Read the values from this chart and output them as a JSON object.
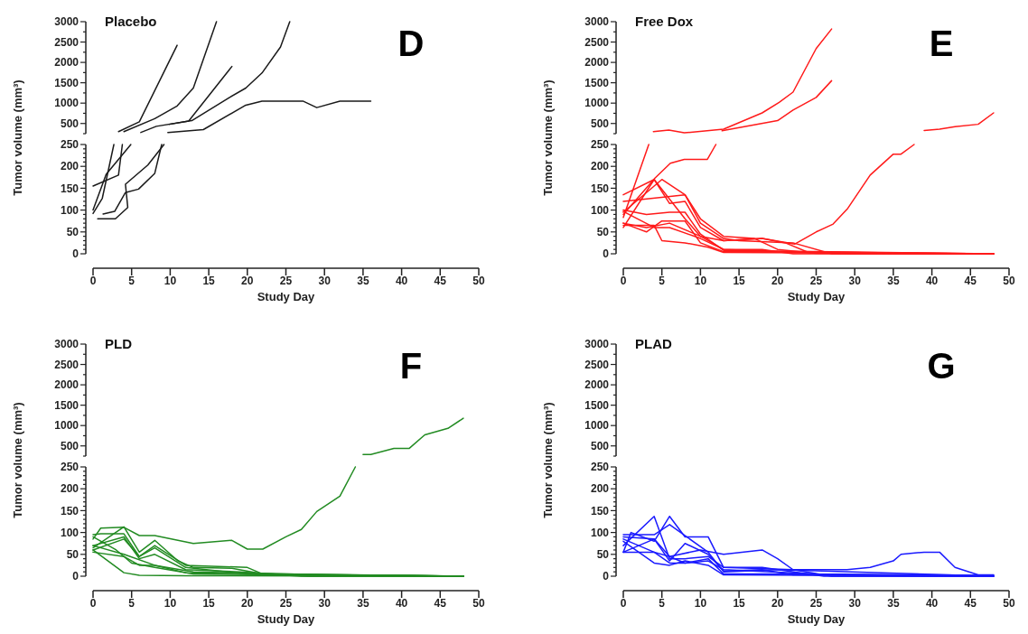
{
  "chart_data": [
    {
      "type": "line",
      "title": "Placebo",
      "annotations": [
        "D"
      ],
      "tick_labels": "y",
      "xlim": [
        0,
        50
      ],
      "ylim": [
        250,
        3000
      ],
      "yticks": [
        {
          "value": 250,
          "label": null
        },
        500,
        {
          "value": 750,
          "label": null
        },
        1000,
        {
          "value": 1250,
          "label": null
        },
        1500,
        {
          "value": 1750,
          "label": null
        },
        2000,
        {
          "value": 2250,
          "label": null
        },
        2500,
        {
          "value": 2750,
          "label": null
        },
        3000
      ],
      "series": [
        {
          "color": "#1a1a1a",
          "x": [
            3.3,
            6,
            10.9
          ],
          "values": [
            300,
            540,
            2420
          ]
        },
        {
          "color": "#1a1a1a",
          "x": [
            4,
            8,
            10.9,
            13,
            16
          ],
          "values": [
            300,
            620,
            930,
            1370,
            3000
          ]
        },
        {
          "color": "#1a1a1a",
          "x": [
            6.2,
            8.2,
            12.8,
            17.7,
            19.8,
            21.9,
            24.3,
            25.5
          ],
          "values": [
            280,
            430,
            570,
            1140,
            1370,
            1740,
            2380,
            3000
          ]
        },
        {
          "color": "#1a1a1a",
          "x": [
            9.7,
            14.3,
            19.8,
            21.9,
            27.2,
            29,
            32,
            36
          ],
          "values": [
            280,
            350,
            950,
            1050,
            1050,
            890,
            1050,
            1050
          ]
        },
        {
          "color": "#1a1a1a",
          "x": [
            9.9,
            12.4,
            18
          ],
          "values": [
            480,
            560,
            1900
          ]
        }
      ]
    },
    {
      "type": "line",
      "xlabel": "Study Day",
      "ylabel": "Tumor volume (mm³)",
      "xlim": [
        0,
        50
      ],
      "ylim": [
        0,
        250
      ],
      "xticks": [
        0,
        5,
        10,
        15,
        20,
        25,
        30,
        35,
        40,
        45,
        50
      ],
      "yticks": [
        0,
        {
          "value": 10,
          "label": null
        },
        {
          "value": 20,
          "label": null
        },
        {
          "value": 30,
          "label": null
        },
        {
          "value": 40,
          "label": null
        },
        50,
        {
          "value": 60,
          "label": null
        },
        {
          "value": 70,
          "label": null
        },
        {
          "value": 80,
          "label": null
        },
        {
          "value": 90,
          "label": null
        },
        100,
        {
          "value": 110,
          "label": null
        },
        {
          "value": 120,
          "label": null
        },
        {
          "value": 130,
          "label": null
        },
        {
          "value": 140,
          "label": null
        },
        150,
        {
          "value": 160,
          "label": null
        },
        {
          "value": 170,
          "label": null
        },
        {
          "value": 180,
          "label": null
        },
        {
          "value": 190,
          "label": null
        },
        200,
        {
          "value": 210,
          "label": null
        },
        {
          "value": 220,
          "label": null
        },
        {
          "value": 230,
          "label": null
        },
        {
          "value": 240,
          "label": null
        },
        250
      ],
      "series": [
        {
          "color": "#1a1a1a",
          "x": [
            0,
            1.2,
            2.7
          ],
          "values": [
            92,
            127,
            250
          ]
        },
        {
          "color": "#1a1a1a",
          "x": [
            0,
            3.3,
            3.8
          ],
          "values": [
            155,
            180,
            250
          ]
        },
        {
          "color": "#1a1a1a",
          "x": [
            0,
            1.7,
            4.9
          ],
          "values": [
            100,
            182,
            250
          ]
        },
        {
          "color": "#1a1a1a",
          "x": [
            0.6,
            2.9,
            4.5,
            4.2,
            7.1,
            9.2
          ],
          "values": [
            80,
            80,
            106,
            159,
            203,
            250
          ]
        },
        {
          "color": "#1a1a1a",
          "x": [
            1.3,
            2.8,
            4.2,
            5.9,
            8,
            8.9
          ],
          "values": [
            91,
            97,
            140,
            148,
            184,
            250
          ]
        }
      ]
    },
    {
      "type": "line",
      "title": "Free Dox",
      "annotations": [
        "E"
      ],
      "tick_labels": "y",
      "xlim": [
        0,
        50
      ],
      "ylim": [
        250,
        3000
      ],
      "yticks": [
        {
          "value": 250,
          "label": null
        },
        500,
        {
          "value": 750,
          "label": null
        },
        1000,
        {
          "value": 1250,
          "label": null
        },
        1500,
        {
          "value": 1750,
          "label": null
        },
        2000,
        {
          "value": 2250,
          "label": null
        },
        2500,
        {
          "value": 2750,
          "label": null
        },
        3000
      ],
      "series": [
        {
          "color": "#ff1a1a",
          "x": [
            3.9,
            5.9,
            7.9,
            13,
            18,
            20.2,
            22,
            25,
            27
          ],
          "values": [
            300,
            340,
            270,
            360,
            760,
            1020,
            1270,
            2340,
            2820
          ]
        },
        {
          "color": "#ff1a1a",
          "x": [
            12.8,
            20,
            22,
            25,
            27
          ],
          "values": [
            320,
            570,
            830,
            1140,
            1550
          ]
        },
        {
          "color": "#ff1a1a",
          "x": [
            39,
            41,
            43,
            46,
            48
          ],
          "values": [
            330,
            360,
            420,
            480,
            760
          ]
        }
      ]
    },
    {
      "type": "line",
      "xlabel": "Study Day",
      "ylabel": "Tumor volume (mm³)",
      "xlim": [
        0,
        50
      ],
      "ylim": [
        0,
        250
      ],
      "xticks": [
        0,
        5,
        10,
        15,
        20,
        25,
        30,
        35,
        40,
        45,
        50
      ],
      "yticks": [
        0,
        {
          "value": 10,
          "label": null
        },
        {
          "value": 20,
          "label": null
        },
        {
          "value": 30,
          "label": null
        },
        {
          "value": 40,
          "label": null
        },
        50,
        {
          "value": 60,
          "label": null
        },
        {
          "value": 70,
          "label": null
        },
        {
          "value": 80,
          "label": null
        },
        {
          "value": 90,
          "label": null
        },
        100,
        {
          "value": 110,
          "label": null
        },
        {
          "value": 120,
          "label": null
        },
        {
          "value": 130,
          "label": null
        },
        {
          "value": 140,
          "label": null
        },
        150,
        {
          "value": 160,
          "label": null
        },
        {
          "value": 170,
          "label": null
        },
        {
          "value": 180,
          "label": null
        },
        {
          "value": 190,
          "label": null
        },
        200,
        {
          "value": 210,
          "label": null
        },
        {
          "value": 220,
          "label": null
        },
        {
          "value": 230,
          "label": null
        },
        {
          "value": 240,
          "label": null
        },
        250
      ],
      "series": [
        {
          "color": "#ff1a1a",
          "x": [
            0,
            3.3
          ],
          "values": [
            83,
            250
          ]
        },
        {
          "color": "#ff1a1a",
          "x": [
            0,
            4.1,
            6.1,
            7.9,
            10.9,
            12
          ],
          "values": [
            90,
            173,
            207,
            216,
            216,
            250
          ]
        },
        {
          "color": "#ff1a1a",
          "x": [
            0,
            3,
            6,
            10,
            13,
            18,
            22.2,
            25,
            27.2,
            29.1,
            32,
            35,
            36,
            37.7
          ],
          "values": [
            70,
            60,
            70,
            40,
            30,
            35,
            22,
            50,
            68,
            104,
            180,
            228,
            228,
            250
          ]
        },
        {
          "color": "#ff1a1a",
          "x": [
            0,
            4,
            6,
            8,
            10,
            13,
            18,
            21,
            24,
            30,
            48
          ],
          "values": [
            60,
            170,
            115,
            120,
            60,
            30,
            35,
            25,
            3,
            0,
            0
          ]
        },
        {
          "color": "#ff1a1a",
          "x": [
            0,
            5,
            8,
            10,
            13,
            15,
            22,
            27,
            48
          ],
          "values": [
            95,
            170,
            135,
            70,
            35,
            30,
            25,
            0,
            0
          ]
        },
        {
          "color": "#ff1a1a",
          "x": [
            0,
            8,
            10,
            13,
            17,
            20,
            25,
            48
          ],
          "values": [
            120,
            135,
            80,
            40,
            35,
            10,
            1,
            0
          ]
        },
        {
          "color": "#ff1a1a",
          "x": [
            0,
            4,
            8,
            10,
            13,
            20,
            48
          ],
          "values": [
            135,
            170,
            80,
            40,
            10,
            5,
            0
          ]
        },
        {
          "color": "#ff1a1a",
          "x": [
            0,
            3,
            6,
            8,
            10,
            13,
            48
          ],
          "values": [
            100,
            90,
            95,
            95,
            45,
            8,
            0
          ]
        },
        {
          "color": "#ff1a1a",
          "x": [
            0,
            3,
            5,
            8,
            10,
            13,
            48
          ],
          "values": [
            70,
            50,
            75,
            75,
            25,
            5,
            0
          ]
        },
        {
          "color": "#ff1a1a",
          "x": [
            0,
            4,
            5,
            8,
            11,
            13,
            48
          ],
          "values": [
            65,
            65,
            30,
            25,
            15,
            3,
            0
          ]
        },
        {
          "color": "#ff1a1a",
          "x": [
            0,
            4,
            6,
            10,
            13,
            18,
            22,
            48
          ],
          "values": [
            97,
            60,
            60,
            35,
            10,
            10,
            0,
            0
          ]
        }
      ]
    },
    {
      "type": "line",
      "title": "PLD",
      "annotations": [
        "F"
      ],
      "tick_labels": "y",
      "xlim": [
        0,
        50
      ],
      "ylim": [
        250,
        3000
      ],
      "yticks": [
        {
          "value": 250,
          "label": null
        },
        500,
        {
          "value": 750,
          "label": null
        },
        1000,
        {
          "value": 1250,
          "label": null
        },
        1500,
        {
          "value": 1750,
          "label": null
        },
        2000,
        {
          "value": 2250,
          "label": null
        },
        2500,
        {
          "value": 2750,
          "label": null
        },
        3000
      ],
      "series": [
        {
          "color": "#228b22",
          "x": [
            35,
            36,
            39,
            41,
            43,
            46,
            48
          ],
          "values": [
            290,
            290,
            440,
            440,
            770,
            930,
            1180
          ]
        }
      ]
    },
    {
      "type": "line",
      "xlabel": "Study Day",
      "ylabel": "Tumor volume (mm³)",
      "xlim": [
        0,
        50
      ],
      "ylim": [
        0,
        250
      ],
      "xticks": [
        0,
        5,
        10,
        15,
        20,
        25,
        30,
        35,
        40,
        45,
        50
      ],
      "yticks": [
        0,
        {
          "value": 10,
          "label": null
        },
        {
          "value": 20,
          "label": null
        },
        {
          "value": 30,
          "label": null
        },
        {
          "value": 40,
          "label": null
        },
        50,
        {
          "value": 60,
          "label": null
        },
        {
          "value": 70,
          "label": null
        },
        {
          "value": 80,
          "label": null
        },
        {
          "value": 90,
          "label": null
        },
        100,
        {
          "value": 110,
          "label": null
        },
        {
          "value": 120,
          "label": null
        },
        {
          "value": 130,
          "label": null
        },
        {
          "value": 140,
          "label": null
        },
        150,
        {
          "value": 160,
          "label": null
        },
        {
          "value": 170,
          "label": null
        },
        {
          "value": 180,
          "label": null
        },
        {
          "value": 190,
          "label": null
        },
        200,
        {
          "value": 210,
          "label": null
        },
        {
          "value": 220,
          "label": null
        },
        {
          "value": 230,
          "label": null
        },
        {
          "value": 240,
          "label": null
        },
        250
      ],
      "series": [
        {
          "color": "#228b22",
          "x": [
            0,
            1,
            4,
            6,
            8,
            13,
            18,
            20,
            22,
            25,
            27,
            29,
            32,
            34
          ],
          "values": [
            85,
            110,
            112,
            93,
            93,
            75,
            82,
            62,
            62,
            90,
            107,
            148,
            183,
            250
          ]
        },
        {
          "color": "#228b22",
          "x": [
            0,
            1,
            4,
            6,
            8,
            12,
            20,
            22,
            27,
            48
          ],
          "values": [
            95,
            97,
            97,
            45,
            70,
            25,
            20,
            5,
            0,
            0
          ]
        },
        {
          "color": "#228b22",
          "x": [
            0,
            4,
            6,
            8,
            11,
            13,
            18,
            22,
            48
          ],
          "values": [
            65,
            113,
            55,
            82,
            35,
            20,
            18,
            5,
            0
          ]
        },
        {
          "color": "#228b22",
          "x": [
            0,
            4,
            6,
            8,
            12,
            20,
            48
          ],
          "values": [
            60,
            85,
            45,
            65,
            20,
            5,
            0
          ]
        },
        {
          "color": "#228b22",
          "x": [
            0,
            4,
            6,
            8,
            12,
            19,
            28,
            48
          ],
          "values": [
            70,
            90,
            40,
            50,
            15,
            10,
            0,
            0
          ]
        },
        {
          "color": "#228b22",
          "x": [
            0,
            4,
            6,
            8,
            12,
            48
          ],
          "values": [
            55,
            45,
            25,
            25,
            8,
            0
          ]
        },
        {
          "color": "#228b22",
          "x": [
            0,
            4,
            6,
            12,
            48
          ],
          "values": [
            60,
            8,
            2,
            1,
            0
          ]
        },
        {
          "color": "#228b22",
          "x": [
            0,
            3,
            5,
            8,
            13,
            48
          ],
          "values": [
            90,
            60,
            30,
            20,
            5,
            0
          ]
        },
        {
          "color": "#228b22",
          "x": [
            0,
            4,
            8,
            13,
            25,
            32,
            41,
            48
          ],
          "values": [
            70,
            50,
            25,
            10,
            5,
            2,
            2,
            0
          ]
        }
      ]
    },
    {
      "type": "line",
      "title": "PLAD",
      "annotations": [
        "G"
      ],
      "tick_labels": "y",
      "xlim": [
        0,
        50
      ],
      "ylim": [
        250,
        3000
      ],
      "yticks": [
        {
          "value": 250,
          "label": null
        },
        500,
        {
          "value": 750,
          "label": null
        },
        1000,
        {
          "value": 1250,
          "label": null
        },
        1500,
        {
          "value": 1750,
          "label": null
        },
        2000,
        {
          "value": 2250,
          "label": null
        },
        2500,
        {
          "value": 2750,
          "label": null
        },
        3000
      ]
    },
    {
      "type": "line",
      "xlabel": "Study Day",
      "ylabel": "Tumor volume (mm³)",
      "xlim": [
        0,
        50
      ],
      "ylim": [
        0,
        250
      ],
      "xticks": [
        0,
        5,
        10,
        15,
        20,
        25,
        30,
        35,
        40,
        45,
        50
      ],
      "yticks": [
        0,
        {
          "value": 10,
          "label": null
        },
        {
          "value": 20,
          "label": null
        },
        {
          "value": 30,
          "label": null
        },
        {
          "value": 40,
          "label": null
        },
        50,
        {
          "value": 60,
          "label": null
        },
        {
          "value": 70,
          "label": null
        },
        {
          "value": 80,
          "label": null
        },
        {
          "value": 90,
          "label": null
        },
        100,
        {
          "value": 110,
          "label": null
        },
        {
          "value": 120,
          "label": null
        },
        {
          "value": 130,
          "label": null
        },
        {
          "value": 140,
          "label": null
        },
        150,
        {
          "value": 160,
          "label": null
        },
        {
          "value": 170,
          "label": null
        },
        {
          "value": 180,
          "label": null
        },
        {
          "value": 190,
          "label": null
        },
        200,
        {
          "value": 210,
          "label": null
        },
        {
          "value": 220,
          "label": null
        },
        {
          "value": 230,
          "label": null
        },
        {
          "value": 240,
          "label": null
        },
        250
      ],
      "series": [
        {
          "color": "#1a1aff",
          "x": [
            0,
            4,
            6,
            10,
            13,
            18,
            20,
            22,
            25,
            29,
            32,
            35,
            36,
            39,
            41,
            43,
            46,
            48
          ],
          "values": [
            55,
            85,
            45,
            60,
            50,
            60,
            40,
            15,
            15,
            15,
            20,
            35,
            50,
            55,
            55,
            20,
            3,
            3
          ]
        },
        {
          "color": "#1a1aff",
          "x": [
            0,
            4,
            6,
            8,
            11,
            13,
            22,
            27,
            48
          ],
          "values": [
            70,
            137,
            40,
            40,
            45,
            20,
            15,
            0,
            0
          ]
        },
        {
          "color": "#1a1aff",
          "x": [
            0,
            4,
            6,
            11,
            13,
            20,
            48
          ],
          "values": [
            95,
            95,
            118,
            55,
            10,
            15,
            0
          ]
        },
        {
          "color": "#1a1aff",
          "x": [
            0,
            1,
            4,
            6,
            8,
            11,
            13,
            18,
            26,
            48
          ],
          "values": [
            55,
            100,
            80,
            137,
            90,
            90,
            20,
            20,
            0,
            0
          ]
        },
        {
          "color": "#1a1aff",
          "x": [
            0,
            4,
            6,
            8,
            11,
            13,
            18,
            22,
            48
          ],
          "values": [
            90,
            85,
            35,
            75,
            50,
            12,
            15,
            3,
            0
          ]
        },
        {
          "color": "#1a1aff",
          "x": [
            0,
            4,
            6,
            8,
            11,
            13,
            20,
            48
          ],
          "values": [
            85,
            55,
            30,
            30,
            40,
            5,
            5,
            0
          ]
        },
        {
          "color": "#1a1aff",
          "x": [
            0,
            4,
            6,
            8,
            11,
            13,
            48
          ],
          "values": [
            80,
            30,
            25,
            35,
            25,
            3,
            0
          ]
        },
        {
          "color": "#1a1aff",
          "x": [
            0,
            4,
            6,
            8,
            11,
            13,
            25,
            48
          ],
          "values": [
            55,
            55,
            45,
            30,
            35,
            15,
            5,
            2
          ]
        }
      ]
    }
  ]
}
